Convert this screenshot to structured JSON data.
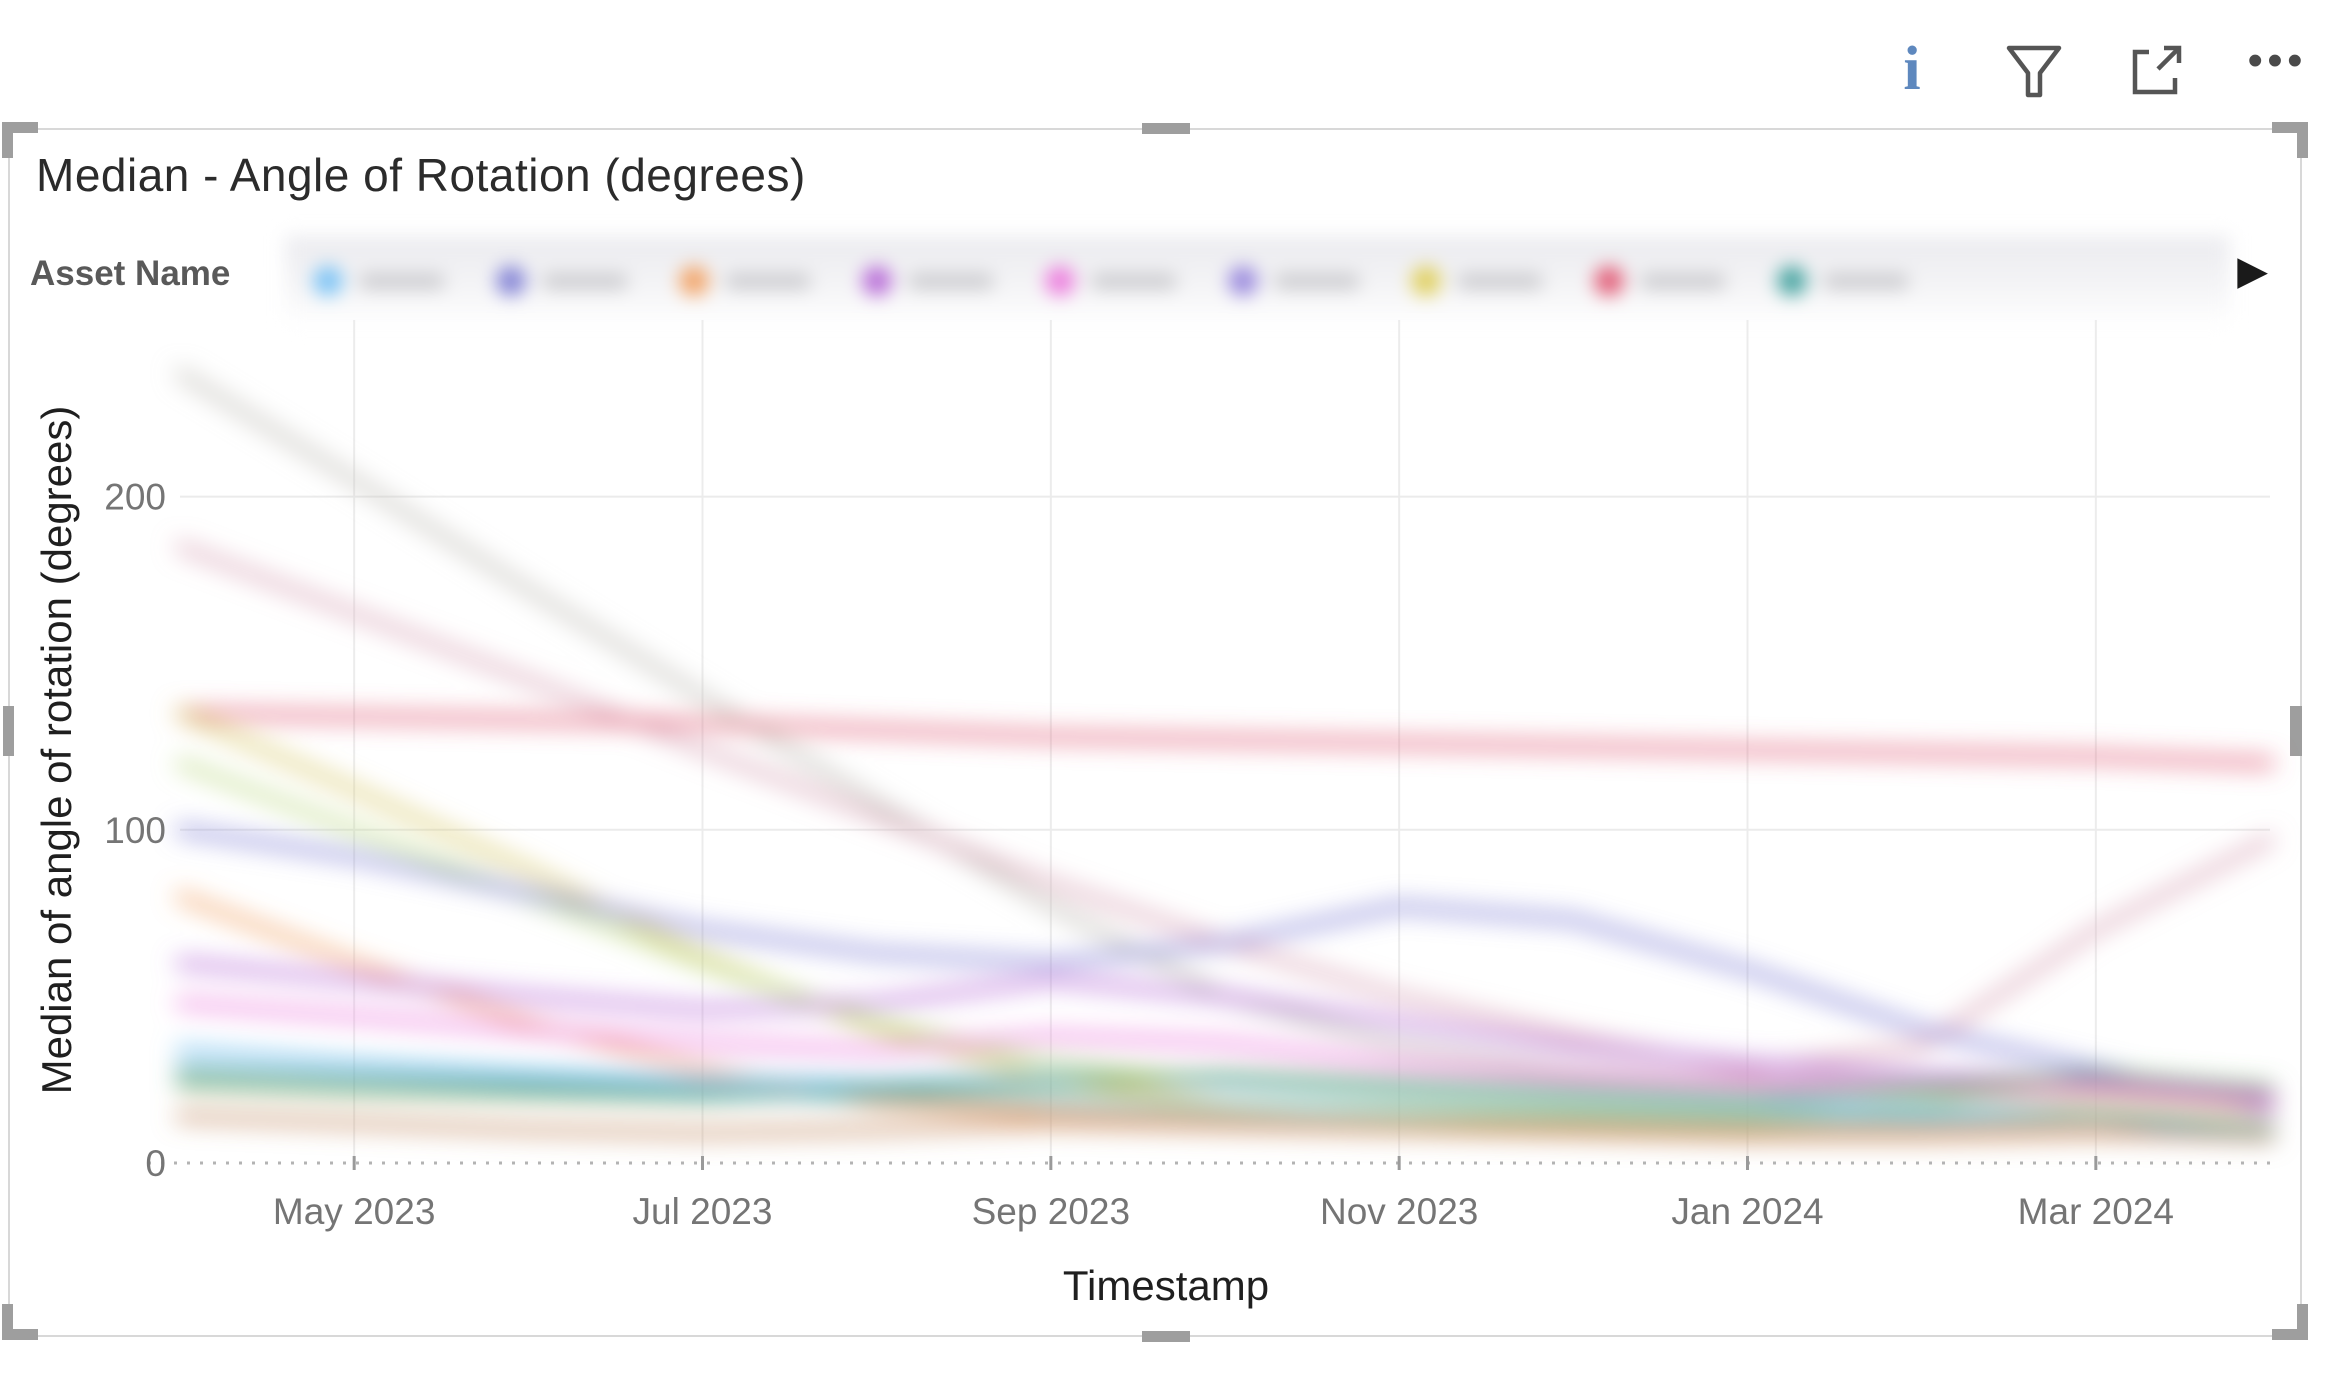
{
  "toolbar": {
    "info_glyph": "i",
    "more_glyph": "• • •",
    "filter_icon": "funnel-icon",
    "focus_icon": "focus-mode-icon"
  },
  "visual": {
    "title": "Median - Angle of Rotation (degrees)",
    "selected": true
  },
  "legend": {
    "title": "Asset Name",
    "labels_redacted": true,
    "arrow_glyph": "▶",
    "dot_colors": [
      "#7ec4f5",
      "#8585d6",
      "#f2a56a",
      "#b96fd8",
      "#ec7fde",
      "#9b8bde",
      "#e0d060",
      "#e2607a",
      "#49a5a2"
    ]
  },
  "chart_data": {
    "type": "line",
    "title": "Median - Angle of Rotation (degrees)",
    "xlabel": "Timestamp",
    "ylabel": "Median of angle of rotation (degrees)",
    "x": [
      "Apr 2023",
      "May 2023",
      "Jun 2023",
      "Jul 2023",
      "Aug 2023",
      "Sep 2023",
      "Oct 2023",
      "Nov 2023",
      "Dec 2023",
      "Jan 2024",
      "Feb 2024",
      "Mar 2024",
      "Apr 2024"
    ],
    "x_ticks": [
      "May 2023",
      "Jul 2023",
      "Sep 2023",
      "Nov 2023",
      "Jan 2024",
      "Mar 2024"
    ],
    "x_tick_month_indices": [
      1,
      3,
      5,
      7,
      9,
      11
    ],
    "y_ticks": [
      0,
      100,
      200
    ],
    "ylim": [
      0,
      250
    ],
    "grid": true,
    "legend_position": "top",
    "note": "Series labels and exact values are blurred/redacted in the source image; values below are estimated from the blurred line positions.",
    "series": [
      {
        "name": "series-gray (label blurred)",
        "color": "#c2bfba",
        "values": [
          237,
          205,
          172,
          140,
          108,
          77,
          50,
          35,
          28,
          25,
          23,
          22,
          20
        ]
      },
      {
        "name": "series-dustypink (label blurred)",
        "color": "#d9a7b8",
        "values": [
          185,
          165,
          145,
          124,
          104,
          84,
          66,
          50,
          38,
          28,
          35,
          70,
          97
        ]
      },
      {
        "name": "series-red (label blurred)",
        "color": "#e2607a",
        "values": [
          135,
          134,
          133,
          132,
          130,
          128,
          127,
          126,
          125,
          124,
          123,
          122,
          120
        ]
      },
      {
        "name": "series-yellow (label blurred)",
        "color": "#d8c96b",
        "values": [
          135,
          112,
          88,
          62,
          40,
          25,
          17,
          14,
          12,
          12,
          14,
          18,
          15
        ]
      },
      {
        "name": "series-lime (label blurred)",
        "color": "#bfdb8a",
        "values": [
          120,
          100,
          80,
          60,
          42,
          30,
          24,
          20,
          17,
          15,
          18,
          24,
          20
        ]
      },
      {
        "name": "series-periwinkle (label blurred)",
        "color": "#8585d6",
        "values": [
          100,
          92,
          81,
          70,
          63,
          60,
          66,
          77,
          73,
          58,
          40,
          28,
          16
        ]
      },
      {
        "name": "series-orange (label blurred)",
        "color": "#f2a56a",
        "values": [
          80,
          60,
          42,
          28,
          18,
          14,
          12,
          10,
          10,
          9,
          9,
          10,
          9
        ]
      },
      {
        "name": "series-violet (label blurred)",
        "color": "#b96fd8",
        "values": [
          60,
          55,
          50,
          46,
          48,
          55,
          50,
          42,
          35,
          30,
          26,
          24,
          20
        ]
      },
      {
        "name": "series-magenta (label blurred)",
        "color": "#ec7fde",
        "values": [
          48,
          44,
          40,
          36,
          34,
          38,
          36,
          30,
          26,
          24,
          22,
          22,
          18
        ]
      },
      {
        "name": "series-lightblue (label blurred)",
        "color": "#7ec4f5",
        "values": [
          34,
          30,
          27,
          25,
          24,
          26,
          24,
          22,
          20,
          18,
          16,
          14,
          8
        ]
      },
      {
        "name": "series-darkgreen (label blurred)",
        "color": "#5e9c54",
        "values": [
          24,
          22,
          21,
          20,
          22,
          24,
          26,
          24,
          22,
          20,
          22,
          26,
          22
        ]
      },
      {
        "name": "series-teal (label blurred)",
        "color": "#49a5a2",
        "values": [
          28,
          26,
          24,
          22,
          20,
          18,
          16,
          15,
          14,
          13,
          13,
          14,
          10
        ]
      },
      {
        "name": "series-brown (label blurred)",
        "color": "#c4906a",
        "values": [
          14,
          12,
          10,
          9,
          10,
          12,
          11,
          10,
          9,
          8,
          8,
          9,
          8
        ]
      }
    ]
  }
}
